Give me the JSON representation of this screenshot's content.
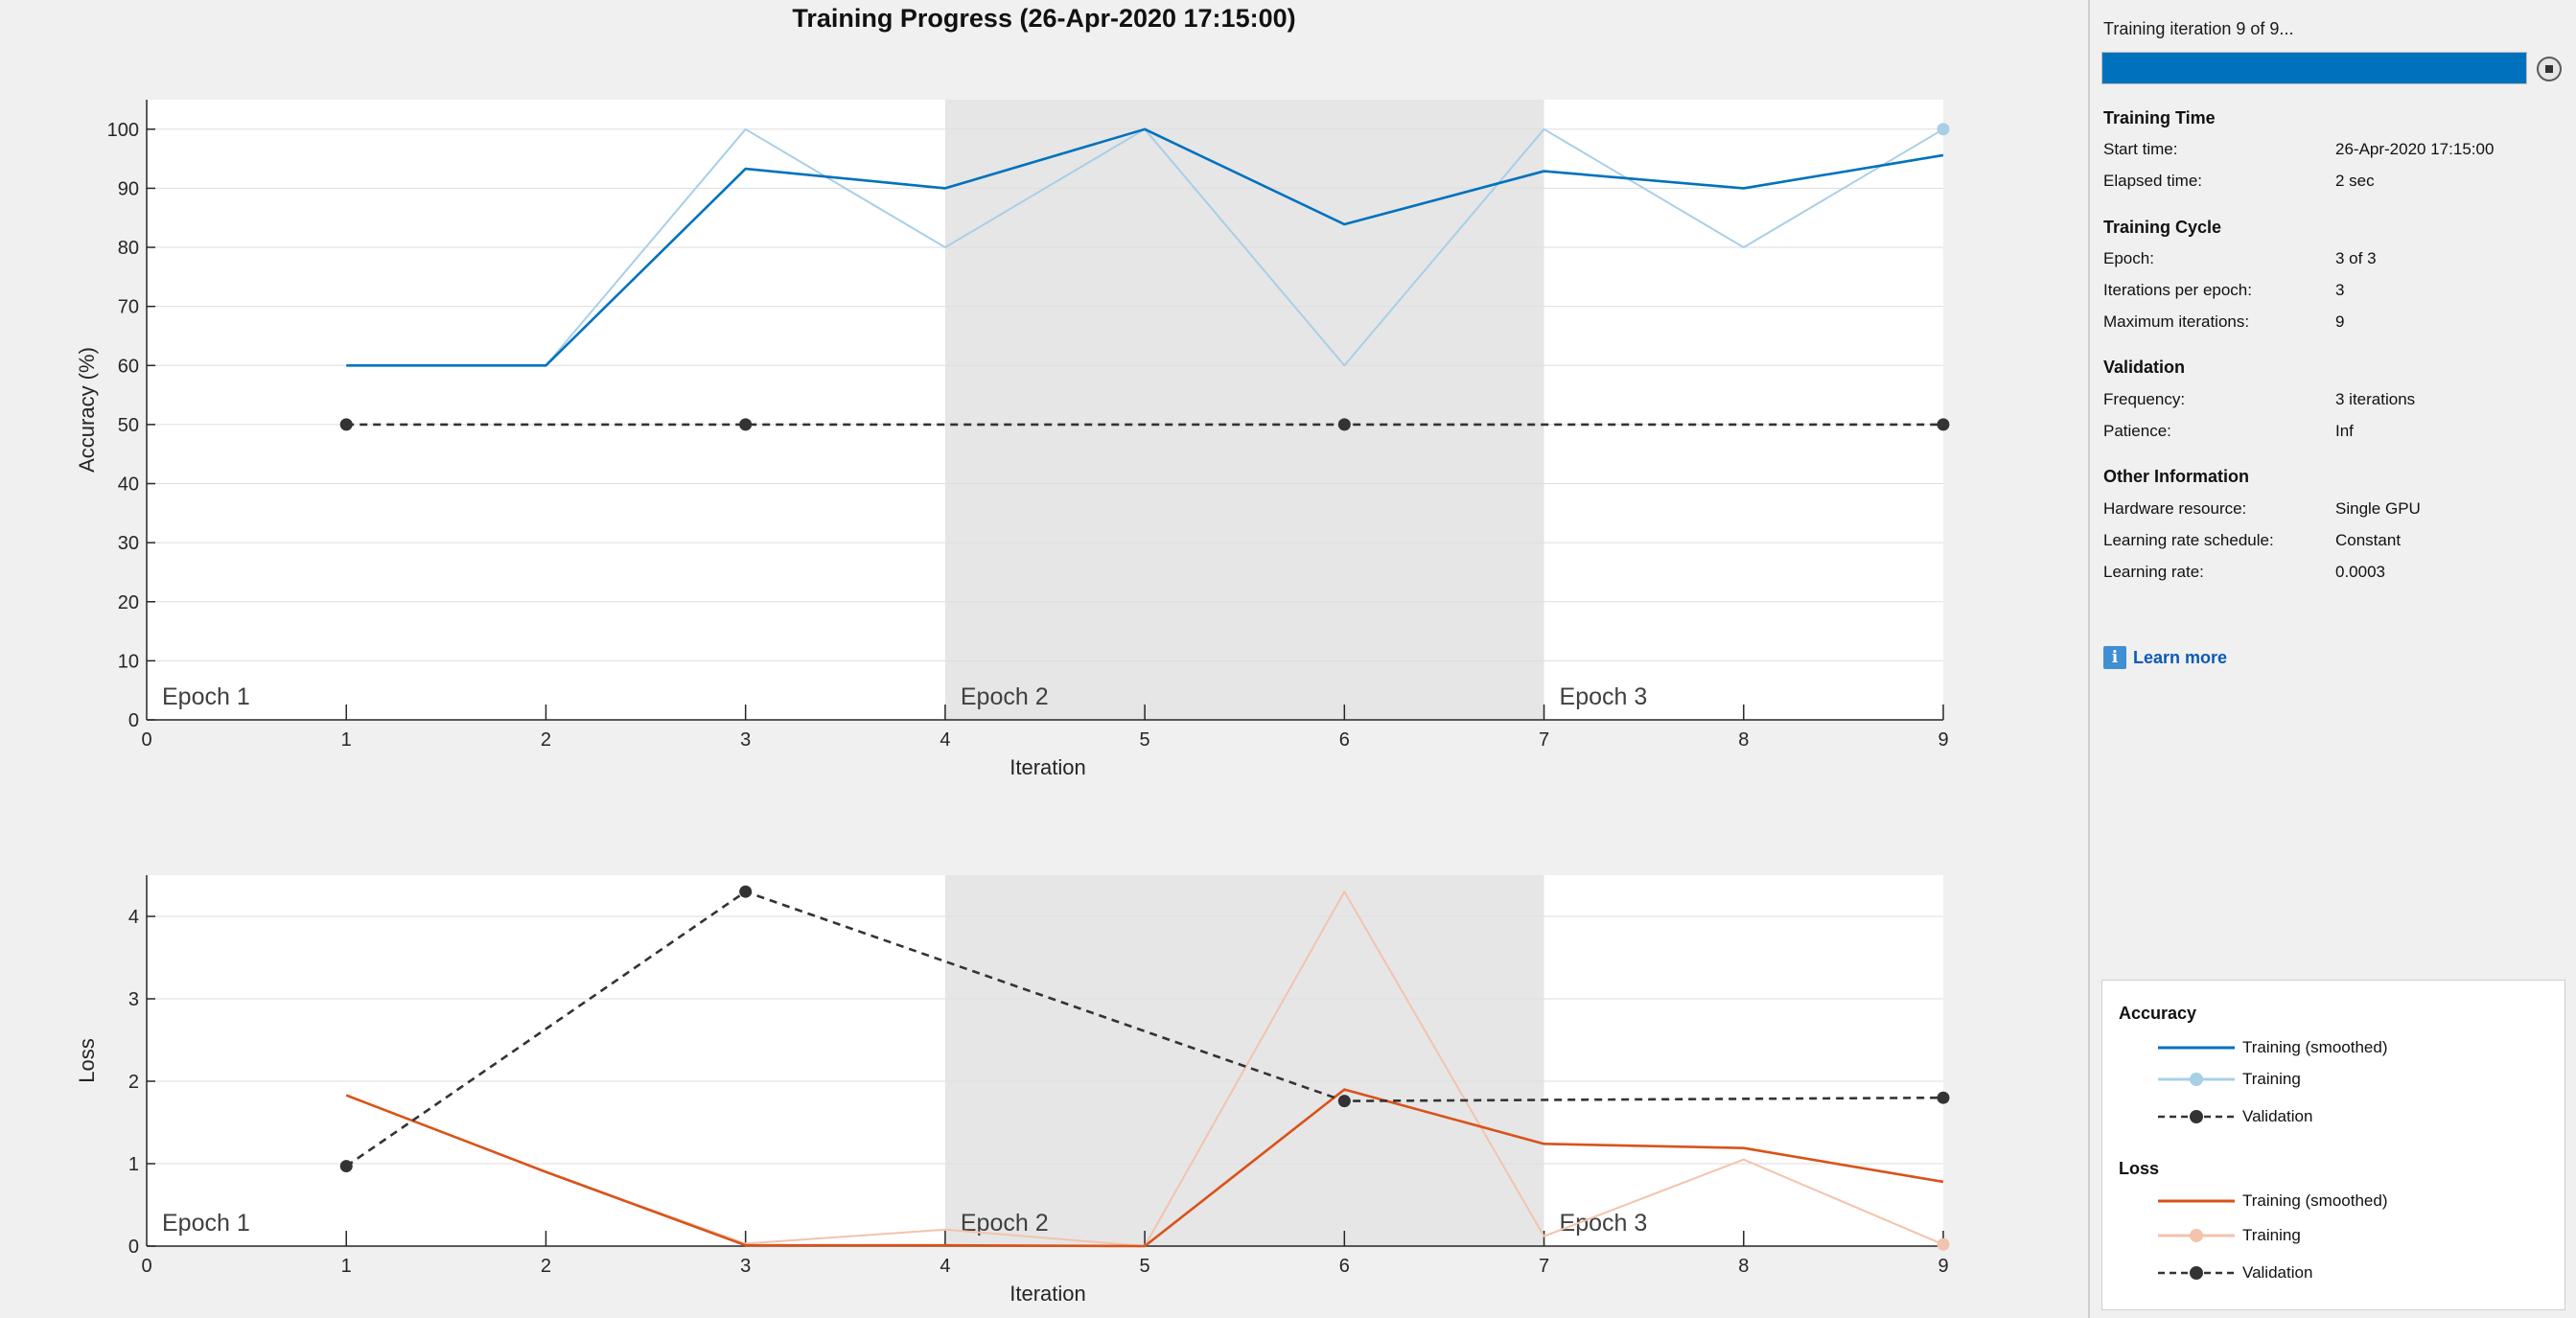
{
  "figure": {
    "title": "Training Progress (26-Apr-2020 17:15:00)"
  },
  "accuracy_plot": {
    "ylabel": "Accuracy (%)",
    "xlabel": "Iteration",
    "epoch_labels": [
      "Epoch 1",
      "Epoch 2",
      "Epoch 3"
    ]
  },
  "loss_plot": {
    "ylabel": "Loss",
    "xlabel": "Iteration",
    "epoch_labels": [
      "Epoch 1",
      "Epoch 2",
      "Epoch 3"
    ]
  },
  "chart_data": [
    {
      "type": "line",
      "title": "",
      "xlabel": "Iteration",
      "ylabel": "Accuracy (%)",
      "xlim": [
        0,
        9
      ],
      "ylim": [
        0,
        105
      ],
      "xticks": [
        0,
        1,
        2,
        3,
        4,
        5,
        6,
        7,
        8,
        9
      ],
      "yticks": [
        0,
        10,
        20,
        30,
        40,
        50,
        60,
        70,
        80,
        90,
        100
      ],
      "grid": true,
      "epoch_bands": [
        {
          "label": "Epoch 1",
          "start": 0,
          "end": 4,
          "shaded": false
        },
        {
          "label": "Epoch 2",
          "start": 4,
          "end": 7,
          "shaded": true
        },
        {
          "label": "Epoch 3",
          "start": 7,
          "end": 9,
          "shaded": false
        }
      ],
      "series": [
        {
          "name": "Training (smoothed)",
          "color": "#0072bd",
          "style": "solid",
          "x": [
            1,
            2,
            3,
            4,
            5,
            6,
            7,
            8,
            9
          ],
          "values": [
            60,
            60,
            93.3,
            90,
            100,
            83.9,
            92.9,
            90,
            95.6
          ]
        },
        {
          "name": "Training",
          "color": "#a8cfe8",
          "style": "solid",
          "x": [
            1,
            2,
            3,
            4,
            5,
            6,
            7,
            8,
            9
          ],
          "values": [
            60,
            60,
            100,
            80,
            100,
            60,
            100,
            80,
            100
          ]
        },
        {
          "name": "Validation",
          "color": "#333333",
          "style": "dashed",
          "markers": true,
          "x": [
            1,
            3,
            6,
            9
          ],
          "values": [
            50,
            50,
            50,
            50
          ]
        }
      ]
    },
    {
      "type": "line",
      "title": "",
      "xlabel": "Iteration",
      "ylabel": "Loss",
      "xlim": [
        0,
        9
      ],
      "ylim": [
        0,
        4.5
      ],
      "xticks": [
        0,
        1,
        2,
        3,
        4,
        5,
        6,
        7,
        8,
        9
      ],
      "yticks": [
        0,
        1,
        2,
        3,
        4
      ],
      "grid": true,
      "epoch_bands": [
        {
          "label": "Epoch 1",
          "start": 0,
          "end": 4,
          "shaded": false
        },
        {
          "label": "Epoch 2",
          "start": 4,
          "end": 7,
          "shaded": true
        },
        {
          "label": "Epoch 3",
          "start": 7,
          "end": 9,
          "shaded": false
        }
      ],
      "series": [
        {
          "name": "Training (smoothed)",
          "color": "#d95319",
          "style": "solid",
          "x": [
            1,
            2,
            3,
            4,
            5,
            6,
            7,
            8,
            9
          ],
          "values": [
            1.83,
            0.9,
            0.01,
            0.01,
            0.0,
            1.9,
            1.24,
            1.19,
            0.78
          ]
        },
        {
          "name": "Training",
          "color": "#f2c3ad",
          "style": "solid",
          "x": [
            1,
            2,
            3,
            4,
            5,
            6,
            7,
            8,
            9
          ],
          "values": [
            1.83,
            0.9,
            0.03,
            0.2,
            0.0,
            4.3,
            0.12,
            1.05,
            0.02
          ]
        },
        {
          "name": "Validation",
          "color": "#333333",
          "style": "dashed",
          "markers": true,
          "x": [
            1,
            3,
            6,
            9
          ],
          "values": [
            0.97,
            4.3,
            1.76,
            1.8
          ]
        }
      ]
    }
  ],
  "sidebar": {
    "status_text": "Training iteration 9 of 9...",
    "progress": 1.0,
    "progress_color": "#0072bd",
    "stop_button_icon": "stop-icon",
    "sections": [
      {
        "title": "Training Time",
        "rows": [
          {
            "label": "Start time:",
            "value": "26-Apr-2020 17:15:00"
          },
          {
            "label": "Elapsed time:",
            "value": "2 sec"
          }
        ]
      },
      {
        "title": "Training Cycle",
        "rows": [
          {
            "label": "Epoch:",
            "value": "3 of 3"
          },
          {
            "label": "Iterations per epoch:",
            "value": "3"
          },
          {
            "label": "Maximum iterations:",
            "value": "9"
          }
        ]
      },
      {
        "title": "Validation",
        "rows": [
          {
            "label": "Frequency:",
            "value": "3 iterations"
          },
          {
            "label": "Patience:",
            "value": "Inf"
          }
        ]
      },
      {
        "title": "Other Information",
        "rows": [
          {
            "label": "Hardware resource:",
            "value": "Single GPU"
          },
          {
            "label": "Learning rate schedule:",
            "value": "Constant"
          },
          {
            "label": "Learning rate:",
            "value": "0.0003"
          }
        ]
      }
    ],
    "learn_more": {
      "icon": "info-icon",
      "label": "Learn more"
    }
  },
  "legend": {
    "groups": [
      {
        "title": "Accuracy",
        "items": [
          {
            "label": "Training (smoothed)",
            "color": "#0072bd",
            "style": "solid",
            "marker": false
          },
          {
            "label": "Training",
            "color": "#a8cfe8",
            "style": "solid",
            "marker": true
          },
          {
            "label": "Validation",
            "color": "#333333",
            "style": "dashed",
            "marker": true
          }
        ]
      },
      {
        "title": "Loss",
        "items": [
          {
            "label": "Training (smoothed)",
            "color": "#d95319",
            "style": "solid",
            "marker": false
          },
          {
            "label": "Training",
            "color": "#f2c3ad",
            "style": "solid",
            "marker": true
          },
          {
            "label": "Validation",
            "color": "#333333",
            "style": "dashed",
            "marker": true
          }
        ]
      }
    ]
  }
}
